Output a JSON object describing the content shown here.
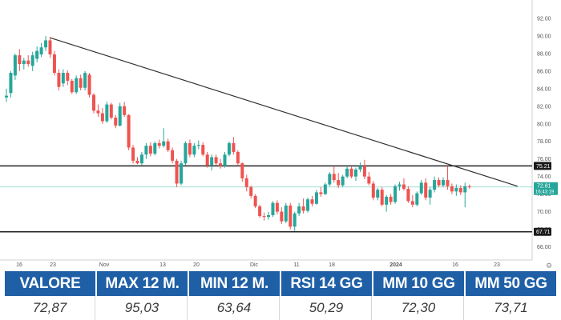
{
  "chart_data": {
    "type": "candlestick",
    "x_tick_labels": [
      "16",
      "23",
      "Nov",
      "13",
      "20",
      "Dic",
      "11",
      "18",
      "2024",
      "16",
      "23"
    ],
    "y_tick_labels": [
      "66.00",
      "68.00",
      "70.00",
      "72.00",
      "74.00",
      "76.00",
      "78.00",
      "80.00",
      "82.00",
      "84.00",
      "86.00",
      "88.00",
      "90.00",
      "92.00"
    ],
    "ylim": [
      64.5,
      93
    ],
    "grid": false,
    "horizontal_lines": [
      {
        "value": 75.21,
        "label": "75.21",
        "style": "solid-dark"
      },
      {
        "value": 67.71,
        "label": "67.71",
        "style": "solid-dark"
      },
      {
        "value": 72.81,
        "label": "72.81",
        "sublabel": "16:43:19",
        "style": "last-price"
      }
    ],
    "trendline": {
      "from": {
        "index": 10,
        "value": 89.8
      },
      "to": {
        "index": 117,
        "value": 72.9
      }
    },
    "up_color": "#26a69a",
    "down_color": "#ef5350",
    "candles": [
      {
        "o": 83.0,
        "h": 84.0,
        "l": 82.5,
        "c": 83.2
      },
      {
        "o": 83.5,
        "h": 86.0,
        "l": 83.0,
        "c": 85.8
      },
      {
        "o": 85.5,
        "h": 88.0,
        "l": 85.0,
        "c": 87.8
      },
      {
        "o": 87.8,
        "h": 88.5,
        "l": 86.0,
        "c": 86.8
      },
      {
        "o": 86.8,
        "h": 87.5,
        "l": 86.2,
        "c": 87.2
      },
      {
        "o": 87.2,
        "h": 87.8,
        "l": 86.5,
        "c": 86.8
      },
      {
        "o": 86.6,
        "h": 88.2,
        "l": 86.0,
        "c": 87.8
      },
      {
        "o": 87.4,
        "h": 88.8,
        "l": 87.0,
        "c": 88.3
      },
      {
        "o": 87.9,
        "h": 89.2,
        "l": 87.6,
        "c": 88.7
      },
      {
        "o": 88.7,
        "h": 90.0,
        "l": 88.3,
        "c": 89.5
      },
      {
        "o": 89.5,
        "h": 89.9,
        "l": 87.5,
        "c": 87.9
      },
      {
        "o": 87.9,
        "h": 88.3,
        "l": 85.5,
        "c": 85.8
      },
      {
        "o": 85.8,
        "h": 86.2,
        "l": 83.8,
        "c": 84.2
      },
      {
        "o": 84.6,
        "h": 86.2,
        "l": 84.2,
        "c": 85.8
      },
      {
        "o": 85.8,
        "h": 86.1,
        "l": 84.4,
        "c": 84.9
      },
      {
        "o": 84.9,
        "h": 85.1,
        "l": 83.4,
        "c": 83.6
      },
      {
        "o": 83.6,
        "h": 85.5,
        "l": 83.4,
        "c": 85.2
      },
      {
        "o": 85.2,
        "h": 85.6,
        "l": 83.8,
        "c": 84.1
      },
      {
        "o": 84.1,
        "h": 86.0,
        "l": 83.8,
        "c": 85.8
      },
      {
        "o": 85.6,
        "h": 85.8,
        "l": 83.0,
        "c": 83.3
      },
      {
        "o": 83.3,
        "h": 83.5,
        "l": 81.2,
        "c": 81.5
      },
      {
        "o": 81.5,
        "h": 82.2,
        "l": 80.8,
        "c": 81.2
      },
      {
        "o": 81.2,
        "h": 81.8,
        "l": 80.0,
        "c": 80.3
      },
      {
        "o": 80.3,
        "h": 82.5,
        "l": 80.1,
        "c": 82.2
      },
      {
        "o": 82.2,
        "h": 82.4,
        "l": 80.5,
        "c": 80.7
      },
      {
        "o": 80.7,
        "h": 81.0,
        "l": 79.5,
        "c": 79.8
      },
      {
        "o": 79.8,
        "h": 82.4,
        "l": 79.7,
        "c": 82.0
      },
      {
        "o": 82.0,
        "h": 82.5,
        "l": 80.8,
        "c": 81.0
      },
      {
        "o": 81.0,
        "h": 81.1,
        "l": 77.0,
        "c": 77.3
      },
      {
        "o": 77.3,
        "h": 77.6,
        "l": 75.5,
        "c": 75.8
      },
      {
        "o": 75.8,
        "h": 76.2,
        "l": 75.4,
        "c": 75.5
      },
      {
        "o": 75.5,
        "h": 76.8,
        "l": 75.3,
        "c": 76.5
      },
      {
        "o": 76.5,
        "h": 77.8,
        "l": 76.0,
        "c": 77.5
      },
      {
        "o": 77.5,
        "h": 77.9,
        "l": 76.3,
        "c": 76.6
      },
      {
        "o": 76.6,
        "h": 78.0,
        "l": 76.4,
        "c": 77.8
      },
      {
        "o": 77.8,
        "h": 78.2,
        "l": 77.2,
        "c": 77.5
      },
      {
        "o": 77.5,
        "h": 79.5,
        "l": 77.3,
        "c": 78.0
      },
      {
        "o": 78.0,
        "h": 78.3,
        "l": 76.8,
        "c": 77.0
      },
      {
        "o": 77.0,
        "h": 77.3,
        "l": 75.5,
        "c": 75.8
      },
      {
        "o": 75.8,
        "h": 76.0,
        "l": 72.8,
        "c": 73.2
      },
      {
        "o": 73.2,
        "h": 75.8,
        "l": 73.0,
        "c": 75.5
      },
      {
        "o": 75.5,
        "h": 78.0,
        "l": 75.3,
        "c": 77.8
      },
      {
        "o": 77.8,
        "h": 78.2,
        "l": 76.2,
        "c": 76.5
      },
      {
        "o": 76.5,
        "h": 77.8,
        "l": 76.2,
        "c": 77.5
      },
      {
        "o": 77.5,
        "h": 78.1,
        "l": 77.1,
        "c": 77.6
      },
      {
        "o": 77.6,
        "h": 77.9,
        "l": 76.3,
        "c": 76.5
      },
      {
        "o": 76.5,
        "h": 76.8,
        "l": 75.0,
        "c": 75.3
      },
      {
        "o": 75.3,
        "h": 76.5,
        "l": 74.7,
        "c": 76.2
      },
      {
        "o": 76.2,
        "h": 76.5,
        "l": 75.3,
        "c": 75.5
      },
      {
        "o": 75.5,
        "h": 76.0,
        "l": 74.9,
        "c": 75.2
      },
      {
        "o": 75.2,
        "h": 76.8,
        "l": 75.0,
        "c": 76.5
      },
      {
        "o": 76.5,
        "h": 78.0,
        "l": 76.3,
        "c": 77.8
      },
      {
        "o": 77.8,
        "h": 78.5,
        "l": 76.5,
        "c": 76.8
      },
      {
        "o": 76.8,
        "h": 77.0,
        "l": 75.2,
        "c": 75.5
      },
      {
        "o": 75.5,
        "h": 75.6,
        "l": 73.4,
        "c": 73.8
      },
      {
        "o": 73.8,
        "h": 74.2,
        "l": 72.3,
        "c": 72.8
      },
      {
        "o": 72.8,
        "h": 73.0,
        "l": 71.5,
        "c": 71.8
      },
      {
        "o": 71.8,
        "h": 72.0,
        "l": 70.4,
        "c": 70.6
      },
      {
        "o": 70.6,
        "h": 70.8,
        "l": 69.3,
        "c": 69.5
      },
      {
        "o": 69.5,
        "h": 69.9,
        "l": 69.0,
        "c": 69.4
      },
      {
        "o": 69.4,
        "h": 70.0,
        "l": 69.1,
        "c": 69.6
      },
      {
        "o": 69.6,
        "h": 71.2,
        "l": 69.4,
        "c": 71.0
      },
      {
        "o": 71.0,
        "h": 71.3,
        "l": 69.7,
        "c": 70.0
      },
      {
        "o": 70.0,
        "h": 70.5,
        "l": 68.6,
        "c": 68.9
      },
      {
        "o": 68.9,
        "h": 71.0,
        "l": 68.7,
        "c": 70.7
      },
      {
        "o": 70.7,
        "h": 71.0,
        "l": 68.0,
        "c": 68.3
      },
      {
        "o": 68.3,
        "h": 70.0,
        "l": 67.8,
        "c": 69.8
      },
      {
        "o": 69.8,
        "h": 71.0,
        "l": 69.5,
        "c": 70.6
      },
      {
        "o": 70.6,
        "h": 71.5,
        "l": 69.8,
        "c": 70.1
      },
      {
        "o": 70.1,
        "h": 71.6,
        "l": 69.9,
        "c": 71.4
      },
      {
        "o": 71.4,
        "h": 71.8,
        "l": 70.6,
        "c": 70.9
      },
      {
        "o": 70.9,
        "h": 72.5,
        "l": 70.8,
        "c": 72.2
      },
      {
        "o": 72.2,
        "h": 72.8,
        "l": 71.7,
        "c": 72.0
      },
      {
        "o": 72.0,
        "h": 73.3,
        "l": 71.9,
        "c": 73.1
      },
      {
        "o": 73.1,
        "h": 74.5,
        "l": 72.9,
        "c": 74.3
      },
      {
        "o": 74.3,
        "h": 75.2,
        "l": 73.3,
        "c": 73.6
      },
      {
        "o": 73.6,
        "h": 74.4,
        "l": 72.7,
        "c": 73.0
      },
      {
        "o": 73.0,
        "h": 74.2,
        "l": 72.8,
        "c": 74.0
      },
      {
        "o": 74.0,
        "h": 75.2,
        "l": 73.8,
        "c": 74.9
      },
      {
        "o": 74.9,
        "h": 75.1,
        "l": 73.8,
        "c": 74.0
      },
      {
        "o": 74.0,
        "h": 75.0,
        "l": 73.5,
        "c": 74.8
      },
      {
        "o": 74.8,
        "h": 75.6,
        "l": 74.5,
        "c": 75.2
      },
      {
        "o": 75.2,
        "h": 75.9,
        "l": 73.7,
        "c": 74.0
      },
      {
        "o": 74.0,
        "h": 74.5,
        "l": 73.0,
        "c": 73.2
      },
      {
        "o": 73.2,
        "h": 73.5,
        "l": 71.3,
        "c": 71.6
      },
      {
        "o": 71.6,
        "h": 72.7,
        "l": 71.3,
        "c": 72.5
      },
      {
        "o": 72.5,
        "h": 72.8,
        "l": 70.6,
        "c": 70.8
      },
      {
        "o": 70.8,
        "h": 71.9,
        "l": 70.0,
        "c": 71.7
      },
      {
        "o": 71.7,
        "h": 72.0,
        "l": 70.8,
        "c": 71.1
      },
      {
        "o": 71.1,
        "h": 73.1,
        "l": 70.9,
        "c": 72.9
      },
      {
        "o": 72.9,
        "h": 73.4,
        "l": 72.4,
        "c": 73.1
      },
      {
        "o": 73.1,
        "h": 73.8,
        "l": 72.4,
        "c": 72.6
      },
      {
        "o": 72.6,
        "h": 72.9,
        "l": 71.0,
        "c": 71.2
      },
      {
        "o": 71.2,
        "h": 71.9,
        "l": 70.5,
        "c": 70.8
      },
      {
        "o": 70.8,
        "h": 72.3,
        "l": 70.6,
        "c": 72.1
      },
      {
        "o": 72.1,
        "h": 73.6,
        "l": 71.9,
        "c": 73.3
      },
      {
        "o": 73.3,
        "h": 73.8,
        "l": 71.3,
        "c": 71.6
      },
      {
        "o": 71.6,
        "h": 72.8,
        "l": 70.8,
        "c": 72.5
      },
      {
        "o": 72.5,
        "h": 74.0,
        "l": 72.2,
        "c": 73.6
      },
      {
        "o": 73.6,
        "h": 73.9,
        "l": 72.8,
        "c": 73.0
      },
      {
        "o": 73.0,
        "h": 73.9,
        "l": 72.8,
        "c": 73.6
      },
      {
        "o": 73.6,
        "h": 75.2,
        "l": 72.5,
        "c": 72.9
      },
      {
        "o": 72.9,
        "h": 73.2,
        "l": 72.0,
        "c": 72.3
      },
      {
        "o": 72.3,
        "h": 73.1,
        "l": 71.8,
        "c": 72.7
      },
      {
        "o": 72.7,
        "h": 73.0,
        "l": 71.9,
        "c": 72.2
      },
      {
        "o": 72.2,
        "h": 73.3,
        "l": 70.5,
        "c": 72.9
      },
      {
        "o": 72.9,
        "h": 73.1,
        "l": 72.6,
        "c": 72.8
      }
    ]
  },
  "stats": [
    {
      "label": "VALORE",
      "value": "72,87"
    },
    {
      "label": "MAX 12 M.",
      "value": "95,03"
    },
    {
      "label": "MIN 12 M.",
      "value": "63,64"
    },
    {
      "label": "RSI 14 GG",
      "value": "50,29"
    },
    {
      "label": "MM 10 GG",
      "value": "72,30"
    },
    {
      "label": "MM 50 GG",
      "value": "73,71"
    }
  ],
  "colors": {
    "header_bg": "#1f5fa6",
    "last_price_bg": "#26a69a"
  }
}
